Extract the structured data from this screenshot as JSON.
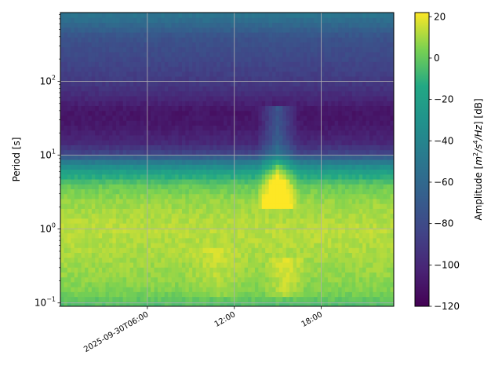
{
  "chart_data": {
    "type": "heatmap",
    "title": "",
    "xlabel": "",
    "ylabel": "Period [s]",
    "colorbar_label": "Amplitude [m²/s⁴/Hz] [dB]",
    "colorbar_label_parts": {
      "prefix": "Amplitude [",
      "m": "m",
      "m_exp": "2",
      "slash1": "/s",
      "s_exp": "4",
      "rest": "/Hz",
      "suffix": "] [dB]"
    },
    "colormap": "viridis",
    "y_scale": "log",
    "y_range": [
      0.09,
      850
    ],
    "y_ticks": [
      {
        "value": 0.1,
        "base": "10",
        "exp": "−1"
      },
      {
        "value": 1,
        "base": "10",
        "exp": "0"
      },
      {
        "value": 10,
        "base": "10",
        "exp": "1"
      },
      {
        "value": 100,
        "base": "10",
        "exp": "2"
      }
    ],
    "x_range_hours": [
      0,
      23
    ],
    "x_ticks": [
      {
        "hour": 6,
        "label": "2025-09-30T06:00"
      },
      {
        "hour": 12,
        "label": "12:00"
      },
      {
        "hour": 18,
        "label": "18:00"
      }
    ],
    "color_range": [
      -120,
      22
    ],
    "colorbar_ticks": [
      20,
      0,
      -20,
      -40,
      -60,
      -80,
      -100,
      -120
    ],
    "colorbar_tick_labels": [
      "20",
      "0",
      "−20",
      "−40",
      "−60",
      "−80",
      "−100",
      "−120"
    ],
    "grid": true,
    "profile_period_s": [
      0.09,
      0.15,
      0.25,
      0.4,
      0.7,
      1.0,
      1.5,
      2.5,
      4.0,
      6.0,
      8.0,
      11.0,
      15.0,
      25.0,
      40.0,
      60.0,
      100.0,
      200.0,
      400.0,
      600.0,
      850.0
    ],
    "profile_db": [
      -5,
      5,
      8,
      10,
      12,
      13,
      11,
      8,
      0,
      -20,
      -45,
      -85,
      -100,
      -108,
      -110,
      -100,
      -90,
      -82,
      -75,
      -60,
      -50
    ],
    "events": [
      {
        "start_hour": 8.5,
        "end_hour": 13,
        "period_min_s": 0.12,
        "period_max_s": 0.6,
        "delta_db": 5
      },
      {
        "start_hour": 14,
        "end_hour": 17,
        "period_min_s": 0.12,
        "period_max_s": 0.4,
        "delta_db": 9
      },
      {
        "start_hour": 13.5,
        "end_hour": 16.5,
        "period_min_s": 2,
        "period_max_s": 50,
        "delta_db": 35
      }
    ]
  }
}
